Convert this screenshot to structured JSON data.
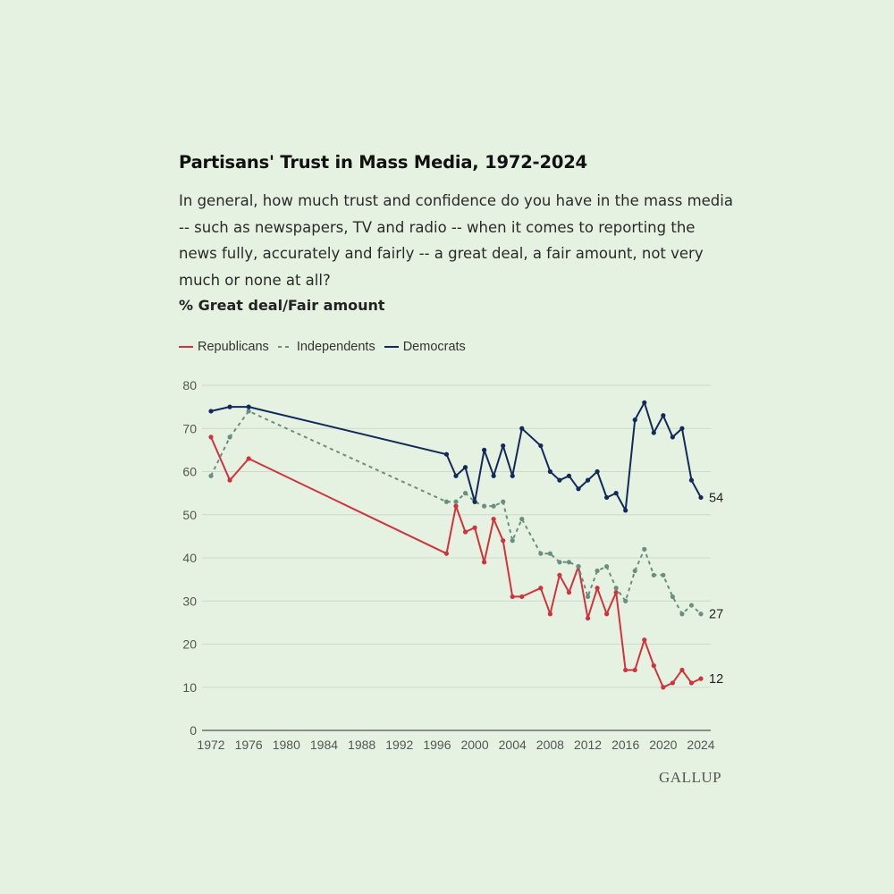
{
  "header": {
    "title": "Partisans' Trust in Mass Media, 1972-2024",
    "question": "In general, how much trust and confidence do you have in the mass media -- such as newspapers, TV and radio -- when it comes to reporting the news fully, accurately and fairly -- a great deal, a fair amount, not very much or none at all?",
    "measure": "% Great deal/Fair amount"
  },
  "source": "GALLUP",
  "colors": {
    "republicans": "#d2323c",
    "independents": "#6a8f80",
    "democrats": "#12295a"
  },
  "chart_data": {
    "type": "line",
    "title": "Partisans' Trust in Mass Media, 1972-2024",
    "ylabel": "% Great deal/Fair amount",
    "xlim": [
      1972,
      2024
    ],
    "ylim": [
      0,
      80
    ],
    "yticks": [
      0,
      10,
      20,
      30,
      40,
      50,
      60,
      70,
      80
    ],
    "xticks": [
      1972,
      1976,
      1980,
      1984,
      1988,
      1992,
      1996,
      2000,
      2004,
      2008,
      2012,
      2016,
      2020,
      2024
    ],
    "grid": true,
    "legend_position": "top-left",
    "series": [
      {
        "name": "Republicans",
        "style": "solid",
        "color": "#d2323c",
        "end_label": "12",
        "x": [
          1972,
          1974,
          1976,
          1997,
          1998,
          1999,
          2000,
          2001,
          2002,
          2003,
          2004,
          2005,
          2007,
          2008,
          2009,
          2010,
          2011,
          2012,
          2013,
          2014,
          2015,
          2016,
          2017,
          2018,
          2019,
          2020,
          2021,
          2022,
          2023,
          2024
        ],
        "y": [
          68,
          58,
          63,
          41,
          52,
          46,
          47,
          39,
          49,
          44,
          31,
          31,
          33,
          27,
          36,
          32,
          38,
          26,
          33,
          27,
          32,
          14,
          14,
          21,
          15,
          10,
          11,
          14,
          11,
          12
        ]
      },
      {
        "name": "Independents",
        "style": "dashed",
        "color": "#6a8f80",
        "end_label": "27",
        "x": [
          1972,
          1974,
          1976,
          1997,
          1998,
          1999,
          2000,
          2001,
          2002,
          2003,
          2004,
          2005,
          2007,
          2008,
          2009,
          2010,
          2011,
          2012,
          2013,
          2014,
          2015,
          2016,
          2017,
          2018,
          2019,
          2020,
          2021,
          2022,
          2023,
          2024
        ],
        "y": [
          59,
          68,
          74,
          53,
          53,
          55,
          53,
          52,
          52,
          53,
          44,
          49,
          41,
          41,
          39,
          39,
          38,
          31,
          37,
          38,
          33,
          30,
          37,
          42,
          36,
          36,
          31,
          27,
          29,
          27
        ]
      },
      {
        "name": "Democrats",
        "style": "solid",
        "color": "#12295a",
        "end_label": "54",
        "x": [
          1972,
          1974,
          1976,
          1997,
          1998,
          1999,
          2000,
          2001,
          2002,
          2003,
          2004,
          2005,
          2007,
          2008,
          2009,
          2010,
          2011,
          2012,
          2013,
          2014,
          2015,
          2016,
          2017,
          2018,
          2019,
          2020,
          2021,
          2022,
          2023,
          2024
        ],
        "y": [
          74,
          75,
          75,
          64,
          59,
          61,
          53,
          65,
          59,
          66,
          59,
          70,
          66,
          60,
          58,
          59,
          56,
          58,
          60,
          54,
          55,
          51,
          72,
          76,
          69,
          73,
          68,
          70,
          58,
          54
        ]
      }
    ]
  }
}
